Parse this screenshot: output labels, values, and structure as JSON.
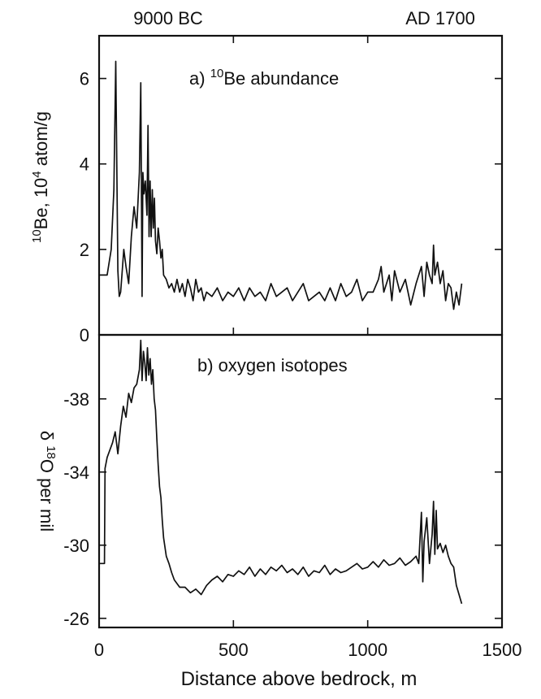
{
  "chart_data": [
    {
      "type": "line",
      "panel_label": {
        "prefix": "a) ",
        "sup": "10",
        "rest": "Be abundance"
      },
      "ylabel": {
        "sup1": "10",
        "mid": "Be,  10",
        "sup2": "4",
        "end": " atom/g"
      },
      "yticks": [
        "6",
        "4",
        "2",
        "0"
      ],
      "ylim": [
        0,
        7
      ],
      "xlim": [
        0,
        1500
      ],
      "top_labels": [
        "9000 BC",
        "AD 1700"
      ],
      "series": [
        {
          "x": [
            0,
            30,
            45,
            55,
            62,
            70,
            75,
            80,
            85,
            92,
            100,
            110,
            120,
            130,
            140,
            150,
            155,
            160,
            163,
            167,
            172,
            178,
            182,
            186,
            190,
            194,
            198,
            202,
            206,
            210,
            215,
            220,
            225,
            230,
            235,
            240,
            250,
            260,
            270,
            280,
            290,
            300,
            310,
            320,
            330,
            340,
            350,
            360,
            370,
            380,
            390,
            400,
            420,
            440,
            460,
            480,
            500,
            520,
            540,
            560,
            580,
            600,
            620,
            640,
            660,
            680,
            700,
            720,
            740,
            760,
            780,
            800,
            820,
            840,
            860,
            880,
            900,
            920,
            940,
            960,
            980,
            1000,
            1020,
            1040,
            1050,
            1060,
            1070,
            1080,
            1090,
            1100,
            1120,
            1140,
            1160,
            1180,
            1200,
            1210,
            1220,
            1230,
            1240,
            1245,
            1250,
            1260,
            1270,
            1280,
            1290,
            1300,
            1310,
            1320,
            1330,
            1340,
            1350
          ],
          "values": [
            1.4,
            1.4,
            2.0,
            3.4,
            6.4,
            1.5,
            0.9,
            1.0,
            1.4,
            2.0,
            1.6,
            1.2,
            2.3,
            3.0,
            2.5,
            3.8,
            5.9,
            0.9,
            3.8,
            3.3,
            3.6,
            2.8,
            4.9,
            2.3,
            3.6,
            2.3,
            3.4,
            2.5,
            3.2,
            2.2,
            1.9,
            2.5,
            2.2,
            1.8,
            2.0,
            1.4,
            1.3,
            1.1,
            1.2,
            1.0,
            1.3,
            1.0,
            1.2,
            0.9,
            1.3,
            1.1,
            0.8,
            1.3,
            1.0,
            1.1,
            0.8,
            1.0,
            0.9,
            1.1,
            0.8,
            1.0,
            0.9,
            1.1,
            0.8,
            1.1,
            0.9,
            1.0,
            0.8,
            1.2,
            0.9,
            1.0,
            1.1,
            0.8,
            1.0,
            1.2,
            0.8,
            0.9,
            1.0,
            0.8,
            1.1,
            0.8,
            1.2,
            0.9,
            1.0,
            1.3,
            0.8,
            1.0,
            1.0,
            1.3,
            1.6,
            1.0,
            1.2,
            1.4,
            0.8,
            1.5,
            1.0,
            1.3,
            0.7,
            1.2,
            1.6,
            0.9,
            1.7,
            1.4,
            1.2,
            2.1,
            1.4,
            1.7,
            1.2,
            1.5,
            0.8,
            1.2,
            1.1,
            0.6,
            1.0,
            0.7,
            1.2
          ]
        }
      ]
    },
    {
      "type": "line",
      "panel_label": {
        "text": "b) oxygen isotopes"
      },
      "ylabel": {
        "pre": "δ ",
        "sup": "18",
        "rest": "O  per mil"
      },
      "yticks": [
        "-38",
        "-34",
        "-30",
        "-26"
      ],
      "ylim": [
        -41.5,
        -25.5
      ],
      "y_inverted": true,
      "xlim": [
        0,
        1500
      ],
      "xticks": [
        "0",
        "500",
        "1000",
        "1500"
      ],
      "xlabel": "Distance above bedrock, m",
      "series": [
        {
          "x": [
            0,
            20,
            22,
            30,
            40,
            50,
            60,
            70,
            80,
            90,
            100,
            110,
            120,
            130,
            140,
            150,
            155,
            160,
            165,
            170,
            175,
            180,
            185,
            190,
            195,
            200,
            205,
            210,
            215,
            220,
            225,
            230,
            235,
            240,
            250,
            260,
            270,
            280,
            290,
            300,
            320,
            340,
            360,
            380,
            400,
            420,
            440,
            460,
            480,
            500,
            520,
            540,
            560,
            580,
            600,
            620,
            640,
            660,
            680,
            700,
            720,
            740,
            760,
            780,
            800,
            820,
            840,
            860,
            880,
            900,
            920,
            940,
            960,
            980,
            1000,
            1020,
            1040,
            1060,
            1080,
            1100,
            1120,
            1140,
            1160,
            1180,
            1190,
            1195,
            1200,
            1205,
            1210,
            1220,
            1230,
            1240,
            1245,
            1250,
            1255,
            1260,
            1270,
            1280,
            1290,
            1300,
            1310,
            1320,
            1330,
            1340,
            1350
          ],
          "values": [
            -29.0,
            -29.0,
            -34.2,
            -34.8,
            -35.2,
            -35.6,
            -36.2,
            -35.0,
            -36.5,
            -37.6,
            -37.0,
            -38.3,
            -37.8,
            -38.6,
            -38.8,
            -39.6,
            -41.2,
            -39.0,
            -40.6,
            -40.0,
            -39.0,
            -40.8,
            -39.3,
            -40.2,
            -38.8,
            -39.6,
            -38.0,
            -37.4,
            -35.8,
            -34.4,
            -33.2,
            -32.6,
            -31.4,
            -30.4,
            -29.4,
            -29.0,
            -28.5,
            -28.1,
            -27.9,
            -27.7,
            -27.7,
            -27.4,
            -27.6,
            -27.3,
            -27.8,
            -28.1,
            -28.3,
            -28.0,
            -28.4,
            -28.3,
            -28.6,
            -28.4,
            -28.8,
            -28.3,
            -28.7,
            -28.4,
            -28.8,
            -28.6,
            -28.9,
            -28.5,
            -28.7,
            -28.4,
            -28.8,
            -28.3,
            -28.6,
            -28.5,
            -28.9,
            -28.4,
            -28.7,
            -28.5,
            -28.6,
            -28.8,
            -29.0,
            -28.7,
            -28.8,
            -29.1,
            -28.8,
            -29.2,
            -28.9,
            -29.0,
            -29.3,
            -28.9,
            -29.1,
            -29.4,
            -29.0,
            -30.4,
            -31.8,
            -28.0,
            -30.2,
            -31.5,
            -29.0,
            -30.6,
            -32.4,
            -29.5,
            -31.9,
            -29.8,
            -30.1,
            -29.6,
            -30.0,
            -29.4,
            -29.0,
            -28.8,
            -27.8,
            -27.3,
            -26.8
          ]
        }
      ]
    }
  ]
}
